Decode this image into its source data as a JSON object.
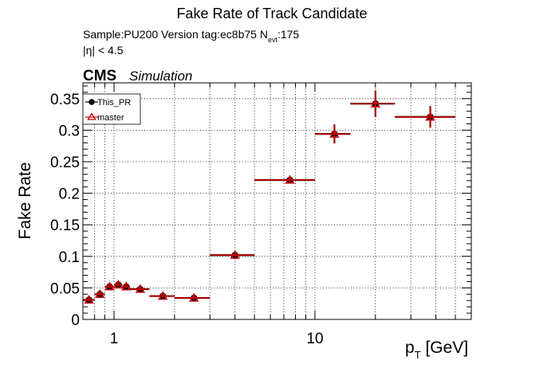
{
  "chart_data": {
    "type": "scatter",
    "title": "Fake Rate of Track Candidate",
    "info_line1": "Sample:PU200   Version tag:ec8b75  N",
    "info_line1_sub": "evt",
    "info_line1_end": ":175",
    "info_line2": "|η| < 4.5",
    "cms_label": "CMS",
    "cms_sub": "Simulation",
    "ylabel": "Fake Rate",
    "xlabel_main": "p",
    "xlabel_sub": "T",
    "xlabel_unit": " [GeV]",
    "xscale": "log",
    "xlim": [
      0.7,
      60
    ],
    "ylim": [
      0,
      0.375
    ],
    "grid": true,
    "legend_position": "top-left",
    "x_tick_labels": [
      {
        "value": 1,
        "label": "1"
      },
      {
        "value": 10,
        "label": "10"
      }
    ],
    "y_ticks": [
      {
        "value": 0,
        "label": "0"
      },
      {
        "value": 0.05,
        "label": "0.05"
      },
      {
        "value": 0.1,
        "label": "0.1"
      },
      {
        "value": 0.15,
        "label": "0.15"
      },
      {
        "value": 0.2,
        "label": "0.2"
      },
      {
        "value": 0.25,
        "label": "0.25"
      },
      {
        "value": 0.3,
        "label": "0.3"
      },
      {
        "value": 0.35,
        "label": "0.35"
      }
    ],
    "series": [
      {
        "name": "This_PR",
        "color": "#000000",
        "marker": "filled-circle",
        "points": [
          {
            "x": 0.75,
            "xlo": 0.7,
            "xhi": 0.8,
            "y": 0.031,
            "yerr": 0.003
          },
          {
            "x": 0.85,
            "xlo": 0.8,
            "xhi": 0.9,
            "y": 0.04,
            "yerr": 0.003
          },
          {
            "x": 0.95,
            "xlo": 0.9,
            "xhi": 1.0,
            "y": 0.052,
            "yerr": 0.003
          },
          {
            "x": 1.05,
            "xlo": 1.0,
            "xhi": 1.1,
            "y": 0.055,
            "yerr": 0.003
          },
          {
            "x": 1.15,
            "xlo": 1.1,
            "xhi": 1.2,
            "y": 0.052,
            "yerr": 0.003
          },
          {
            "x": 1.35,
            "xlo": 1.2,
            "xhi": 1.5,
            "y": 0.048,
            "yerr": 0.003
          },
          {
            "x": 1.75,
            "xlo": 1.5,
            "xhi": 2.0,
            "y": 0.037,
            "yerr": 0.003
          },
          {
            "x": 2.5,
            "xlo": 2.0,
            "xhi": 3.0,
            "y": 0.034,
            "yerr": 0.003
          },
          {
            "x": 4.0,
            "xlo": 3.0,
            "xhi": 5.0,
            "y": 0.102,
            "yerr": 0.003
          },
          {
            "x": 7.5,
            "xlo": 5.0,
            "xhi": 10.0,
            "y": 0.221,
            "yerr": 0.005
          },
          {
            "x": 12.5,
            "xlo": 10.0,
            "xhi": 15.0,
            "y": 0.294,
            "yerr": 0.015
          },
          {
            "x": 20.0,
            "xlo": 15.0,
            "xhi": 25.0,
            "y": 0.342,
            "yerr": 0.021
          },
          {
            "x": 37.5,
            "xlo": 25.0,
            "xhi": 50.0,
            "y": 0.321,
            "yerr": 0.017
          }
        ]
      },
      {
        "name": "master",
        "color": "#cc0000",
        "marker": "open-triangle",
        "points": [
          {
            "x": 0.75,
            "xlo": 0.7,
            "xhi": 0.8,
            "y": 0.031,
            "yerr": 0.003
          },
          {
            "x": 0.85,
            "xlo": 0.8,
            "xhi": 0.9,
            "y": 0.04,
            "yerr": 0.003
          },
          {
            "x": 0.95,
            "xlo": 0.9,
            "xhi": 1.0,
            "y": 0.052,
            "yerr": 0.003
          },
          {
            "x": 1.05,
            "xlo": 1.0,
            "xhi": 1.1,
            "y": 0.055,
            "yerr": 0.003
          },
          {
            "x": 1.15,
            "xlo": 1.1,
            "xhi": 1.2,
            "y": 0.052,
            "yerr": 0.003
          },
          {
            "x": 1.35,
            "xlo": 1.2,
            "xhi": 1.5,
            "y": 0.048,
            "yerr": 0.003
          },
          {
            "x": 1.75,
            "xlo": 1.5,
            "xhi": 2.0,
            "y": 0.037,
            "yerr": 0.003
          },
          {
            "x": 2.5,
            "xlo": 2.0,
            "xhi": 3.0,
            "y": 0.034,
            "yerr": 0.003
          },
          {
            "x": 4.0,
            "xlo": 3.0,
            "xhi": 5.0,
            "y": 0.102,
            "yerr": 0.003
          },
          {
            "x": 7.5,
            "xlo": 5.0,
            "xhi": 10.0,
            "y": 0.221,
            "yerr": 0.005
          },
          {
            "x": 12.5,
            "xlo": 10.0,
            "xhi": 15.0,
            "y": 0.294,
            "yerr": 0.015
          },
          {
            "x": 20.0,
            "xlo": 15.0,
            "xhi": 25.0,
            "y": 0.342,
            "yerr": 0.021
          },
          {
            "x": 37.5,
            "xlo": 25.0,
            "xhi": 50.0,
            "y": 0.321,
            "yerr": 0.017
          }
        ]
      }
    ]
  }
}
